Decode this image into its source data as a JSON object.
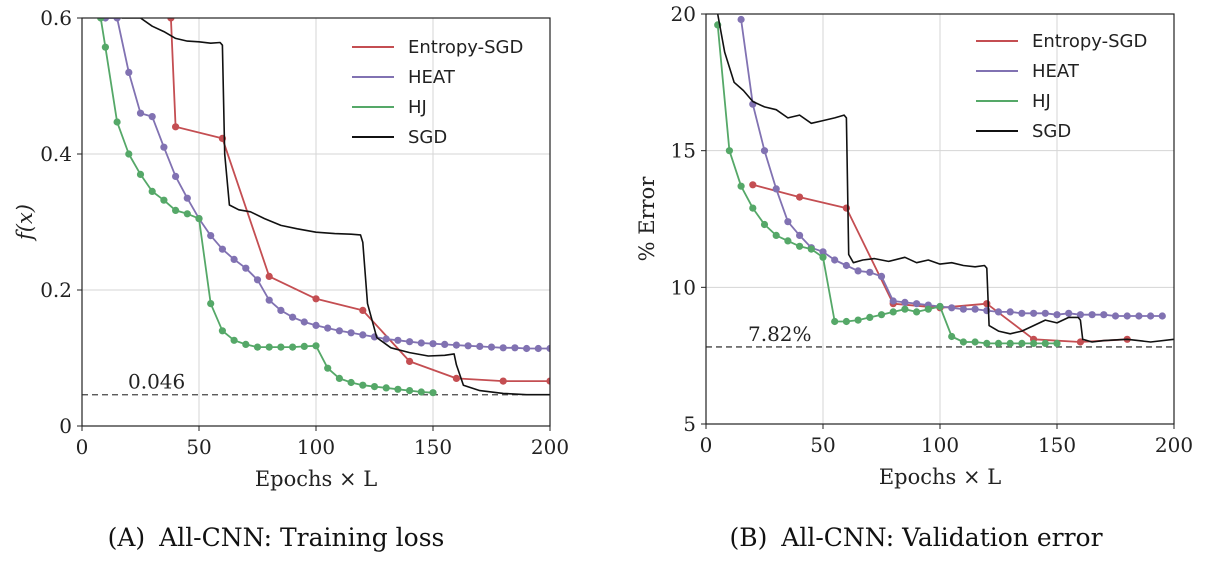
{
  "chart_data": [
    {
      "type": "line",
      "panel": "A",
      "caption": "(A) All-CNN: Training loss",
      "caption_prefix": "(A)",
      "caption_text": "All-CNN: Training loss",
      "xlabel": "Epochs × L",
      "ylabel": "f(x)",
      "xlim": [
        0,
        200
      ],
      "ylim": [
        0,
        0.6
      ],
      "xticks": [
        "0",
        "50",
        "100",
        "150",
        "200"
      ],
      "yticks": [
        "0",
        "0.2",
        "0.4",
        "0.6"
      ],
      "grid": true,
      "legend_position": "top-right",
      "reference_line": {
        "y": 0.046,
        "label": "0.046"
      },
      "series": [
        {
          "name": "Entropy-SGD",
          "color": "#c44e52",
          "markers": true,
          "x": [
            38,
            40,
            60,
            80,
            100,
            120,
            140,
            160,
            180,
            200
          ],
          "y": [
            0.6,
            0.44,
            0.423,
            0.22,
            0.187,
            0.17,
            0.095,
            0.07,
            0.066,
            0.066
          ]
        },
        {
          "name": "HEAT",
          "color": "#8172b2",
          "markers": true,
          "x": [
            10,
            15,
            20,
            25,
            30,
            35,
            40,
            45,
            50,
            55,
            60,
            65,
            70,
            75,
            80,
            85,
            90,
            95,
            100,
            105,
            110,
            115,
            120,
            125,
            130,
            135,
            140,
            145,
            150,
            155,
            160,
            165,
            170,
            175,
            180,
            185,
            190,
            195,
            200
          ],
          "y": [
            0.6,
            0.6,
            0.52,
            0.46,
            0.455,
            0.41,
            0.367,
            0.335,
            0.305,
            0.28,
            0.26,
            0.245,
            0.232,
            0.215,
            0.185,
            0.17,
            0.16,
            0.153,
            0.148,
            0.144,
            0.14,
            0.137,
            0.134,
            0.131,
            0.128,
            0.126,
            0.124,
            0.122,
            0.121,
            0.12,
            0.119,
            0.118,
            0.117,
            0.116,
            0.115,
            0.115,
            0.114,
            0.114,
            0.114
          ]
        },
        {
          "name": "HJ",
          "color": "#55a868",
          "markers": true,
          "x": [
            8,
            10,
            15,
            20,
            25,
            30,
            35,
            40,
            45,
            50,
            55,
            60,
            65,
            70,
            75,
            80,
            85,
            90,
            95,
            100,
            105,
            110,
            115,
            120,
            125,
            130,
            135,
            140,
            145,
            150
          ],
          "y": [
            0.6,
            0.557,
            0.447,
            0.4,
            0.37,
            0.345,
            0.332,
            0.317,
            0.312,
            0.305,
            0.18,
            0.14,
            0.126,
            0.12,
            0.116,
            0.116,
            0.116,
            0.116,
            0.117,
            0.118,
            0.085,
            0.07,
            0.064,
            0.06,
            0.058,
            0.056,
            0.054,
            0.052,
            0.05,
            0.049
          ]
        },
        {
          "name": "SGD",
          "color": "#111111",
          "markers": false,
          "x": [
            17,
            25,
            30,
            35,
            40,
            45,
            50,
            55,
            59,
            60,
            61,
            63,
            67,
            72,
            78,
            85,
            92,
            100,
            108,
            115,
            119,
            120,
            122,
            126,
            132,
            140,
            148,
            155,
            159,
            160,
            163,
            170,
            180,
            190,
            200
          ],
          "y": [
            0.6,
            0.6,
            0.588,
            0.58,
            0.57,
            0.566,
            0.565,
            0.563,
            0.564,
            0.56,
            0.4,
            0.325,
            0.318,
            0.315,
            0.305,
            0.295,
            0.29,
            0.285,
            0.283,
            0.282,
            0.281,
            0.27,
            0.18,
            0.13,
            0.115,
            0.108,
            0.103,
            0.104,
            0.106,
            0.09,
            0.06,
            0.052,
            0.048,
            0.046,
            0.046
          ]
        }
      ]
    },
    {
      "type": "line",
      "panel": "B",
      "caption": "(B) All-CNN: Validation error",
      "caption_prefix": "(B)",
      "caption_text": "All-CNN: Validation error",
      "xlabel": "Epochs × L",
      "ylabel": "% Error",
      "xlim": [
        0,
        200
      ],
      "ylim": [
        5,
        20
      ],
      "xticks": [
        "0",
        "50",
        "100",
        "150",
        "200"
      ],
      "yticks": [
        "5",
        "10",
        "15",
        "20"
      ],
      "grid": true,
      "legend_position": "top-right",
      "reference_line": {
        "y": 7.82,
        "label": "7.82%"
      },
      "series": [
        {
          "name": "Entropy-SGD",
          "color": "#c44e52",
          "markers": true,
          "x": [
            20,
            40,
            60,
            80,
            100,
            120,
            140,
            160,
            180
          ],
          "y": [
            13.75,
            13.3,
            12.9,
            9.4,
            9.25,
            9.4,
            8.1,
            8.0,
            8.1
          ]
        },
        {
          "name": "HEAT",
          "color": "#8172b2",
          "markers": true,
          "x": [
            15,
            20,
            25,
            30,
            35,
            40,
            45,
            50,
            55,
            60,
            65,
            70,
            75,
            80,
            85,
            90,
            95,
            100,
            105,
            110,
            115,
            120,
            125,
            130,
            135,
            140,
            145,
            150,
            155,
            160,
            165,
            170,
            175,
            180,
            185,
            190,
            195
          ],
          "y": [
            19.8,
            16.7,
            15.0,
            13.6,
            12.4,
            11.9,
            11.45,
            11.3,
            11.0,
            10.8,
            10.6,
            10.55,
            10.4,
            9.5,
            9.45,
            9.4,
            9.35,
            9.3,
            9.25,
            9.2,
            9.2,
            9.15,
            9.1,
            9.1,
            9.05,
            9.05,
            9.05,
            9.0,
            9.05,
            9.0,
            9.0,
            9.0,
            8.95,
            8.95,
            8.95,
            8.95,
            8.95
          ]
        },
        {
          "name": "HJ",
          "color": "#55a868",
          "markers": true,
          "x": [
            5,
            10,
            15,
            20,
            25,
            30,
            35,
            40,
            45,
            50,
            55,
            60,
            65,
            70,
            75,
            80,
            85,
            90,
            95,
            100,
            105,
            110,
            115,
            120,
            125,
            130,
            135,
            140,
            145,
            150
          ],
          "y": [
            19.6,
            15.0,
            13.7,
            12.9,
            12.3,
            11.9,
            11.7,
            11.5,
            11.4,
            11.1,
            8.75,
            8.75,
            8.8,
            8.9,
            9.0,
            9.1,
            9.2,
            9.1,
            9.2,
            9.3,
            8.2,
            8.0,
            8.0,
            7.95,
            7.95,
            7.95,
            7.95,
            7.95,
            7.95,
            7.95
          ]
        },
        {
          "name": "SGD",
          "color": "#111111",
          "markers": false,
          "x": [
            5,
            8,
            12,
            16,
            20,
            25,
            30,
            35,
            40,
            45,
            50,
            55,
            59,
            60,
            61,
            63,
            67,
            72,
            78,
            85,
            90,
            95,
            100,
            105,
            110,
            115,
            119,
            120,
            121,
            125,
            130,
            135,
            140,
            145,
            150,
            155,
            159,
            160,
            161,
            165,
            170,
            180,
            190,
            200
          ],
          "y": [
            20.0,
            18.6,
            17.5,
            17.2,
            16.8,
            16.6,
            16.5,
            16.2,
            16.3,
            16.0,
            16.1,
            16.2,
            16.3,
            16.2,
            11.2,
            10.9,
            11.0,
            11.05,
            10.95,
            11.1,
            10.9,
            11.0,
            10.85,
            10.9,
            10.8,
            10.75,
            10.8,
            10.7,
            8.6,
            8.4,
            8.3,
            8.4,
            8.6,
            8.8,
            8.7,
            8.9,
            8.9,
            8.8,
            8.1,
            8.0,
            8.05,
            8.1,
            8.0,
            8.1
          ]
        }
      ]
    }
  ]
}
